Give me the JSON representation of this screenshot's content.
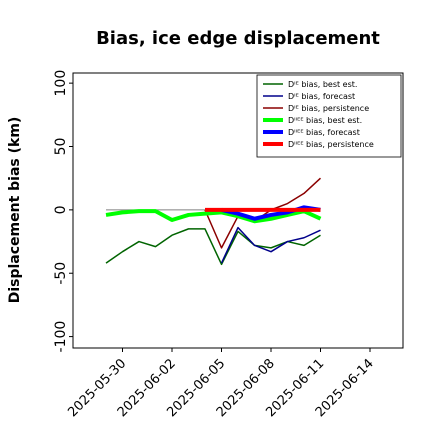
{
  "chart_data": {
    "type": "line",
    "title": "Bias, ice edge displacement",
    "y_label": "Displacement bias (km)",
    "x": [
      "2025-05-29",
      "2025-05-30",
      "2025-05-31",
      "2025-06-01",
      "2025-06-02",
      "2025-06-03",
      "2025-06-04",
      "2025-06-05",
      "2025-06-06",
      "2025-06-07",
      "2025-06-08",
      "2025-06-09",
      "2025-06-10",
      "2025-06-11"
    ],
    "xlim": [
      "2025-05-27",
      "2025-06-16"
    ],
    "xticks": [
      "2025-05-30",
      "2025-06-02",
      "2025-06-05",
      "2025-06-08",
      "2025-06-11",
      "2025-06-14"
    ],
    "highlight_xtick": {
      "index": 2,
      "color": "green"
    },
    "ylim": [
      -109,
      108
    ],
    "yticks": [
      -100,
      -50,
      0,
      50,
      100
    ],
    "reference_line": {
      "y": 0,
      "color": "gray"
    },
    "legend": "upper right",
    "series": [
      {
        "name": "Dᴵᴱ bias, best est.",
        "color": "#006400",
        "linewidth": 1.5,
        "values": [
          -42,
          -33,
          -25,
          -29,
          -20,
          -15,
          -15,
          -43,
          -17,
          -28,
          -30,
          -25,
          -28,
          -20
        ]
      },
      {
        "name": "Dᴵᴱ bias, forecast",
        "color": "#00008b",
        "linewidth": 1.5,
        "values": [
          null,
          null,
          null,
          null,
          null,
          null,
          null,
          -42,
          -14,
          -28,
          -33,
          -25,
          -22,
          -16
        ]
      },
      {
        "name": "Dᴵᴱ bias, persistence",
        "color": "#8b0000",
        "linewidth": 1.5,
        "values": [
          null,
          null,
          null,
          null,
          null,
          null,
          0,
          -30,
          -5,
          -9,
          0,
          5,
          13,
          25
        ]
      },
      {
        "name": "Dᴵᴵᴱᴱ bias, best est.",
        "color": "#00ff00",
        "linewidth": 4,
        "values": [
          -4,
          -2,
          -1,
          -1,
          -8,
          -4,
          -3,
          -2,
          -5,
          -9,
          -7,
          -4,
          -1,
          -7
        ]
      },
      {
        "name": "Dᴵᴵᴱᴱ bias, forecast",
        "color": "#0000ff",
        "linewidth": 4,
        "values": [
          null,
          null,
          null,
          null,
          null,
          null,
          null,
          0,
          -3,
          -7,
          -4,
          -2,
          2,
          0
        ]
      },
      {
        "name": "Dᴵᴵᴱᴱ bias, persistence",
        "color": "#ff0000",
        "linewidth": 4,
        "values": [
          null,
          null,
          null,
          null,
          null,
          null,
          0,
          0,
          0,
          0,
          0,
          0,
          0,
          0
        ]
      }
    ]
  }
}
